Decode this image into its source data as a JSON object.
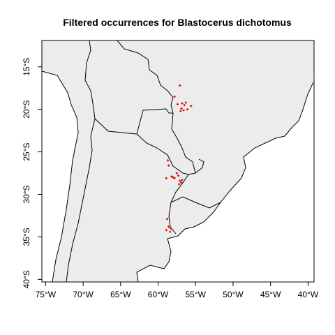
{
  "chart_data": {
    "type": "scatter",
    "title": "Filtered occurrences for Blastocerus dichotomus",
    "xlabel": "",
    "ylabel": "",
    "xlim": [
      -75.5,
      -39.2
    ],
    "ylim": [
      -40.3,
      -11.9
    ],
    "x_ticks": [
      {
        "value": -75,
        "label": "75°W"
      },
      {
        "value": -70,
        "label": "70°W"
      },
      {
        "value": -65,
        "label": "65°W"
      },
      {
        "value": -60,
        "label": "60°W"
      },
      {
        "value": -55,
        "label": "55°W"
      },
      {
        "value": -50,
        "label": "50°W"
      },
      {
        "value": -45,
        "label": "45°W"
      },
      {
        "value": -40,
        "label": "40°W"
      }
    ],
    "y_ticks": [
      {
        "value": -15,
        "label": "15°S"
      },
      {
        "value": -20,
        "label": "20°S"
      },
      {
        "value": -25,
        "label": "25°S"
      },
      {
        "value": -30,
        "label": "30°S"
      },
      {
        "value": -35,
        "label": "35°S"
      },
      {
        "value": -40,
        "label": "40°S"
      }
    ],
    "land_color": "#ececec",
    "border_color": "#000000",
    "point_color": "#e00000",
    "points": [
      {
        "lon": -57.1,
        "lat": -17.2
      },
      {
        "lon": -57.8,
        "lat": -18.5
      },
      {
        "lon": -57.4,
        "lat": -19.4
      },
      {
        "lon": -56.8,
        "lat": -19.3
      },
      {
        "lon": -56.5,
        "lat": -19.5
      },
      {
        "lon": -56.3,
        "lat": -19.2
      },
      {
        "lon": -55.6,
        "lat": -19.6
      },
      {
        "lon": -56.9,
        "lat": -19.9
      },
      {
        "lon": -56.6,
        "lat": -20.1
      },
      {
        "lon": -57.0,
        "lat": -20.2
      },
      {
        "lon": -56.1,
        "lat": -20.0
      },
      {
        "lon": -58.7,
        "lat": -26.0
      },
      {
        "lon": -58.6,
        "lat": -26.6
      },
      {
        "lon": -57.5,
        "lat": -27.5
      },
      {
        "lon": -58.2,
        "lat": -27.9
      },
      {
        "lon": -58.0,
        "lat": -28.0
      },
      {
        "lon": -57.8,
        "lat": -28.1
      },
      {
        "lon": -57.3,
        "lat": -27.8
      },
      {
        "lon": -58.9,
        "lat": -28.1
      },
      {
        "lon": -57.1,
        "lat": -28.4
      },
      {
        "lon": -56.9,
        "lat": -28.6
      },
      {
        "lon": -57.2,
        "lat": -28.8
      },
      {
        "lon": -56.8,
        "lat": -28.3
      },
      {
        "lon": -58.8,
        "lat": -32.9
      },
      {
        "lon": -58.6,
        "lat": -33.8
      },
      {
        "lon": -58.3,
        "lat": -34.0
      },
      {
        "lon": -58.9,
        "lat": -34.2
      },
      {
        "lon": -58.4,
        "lat": -34.4
      }
    ]
  }
}
